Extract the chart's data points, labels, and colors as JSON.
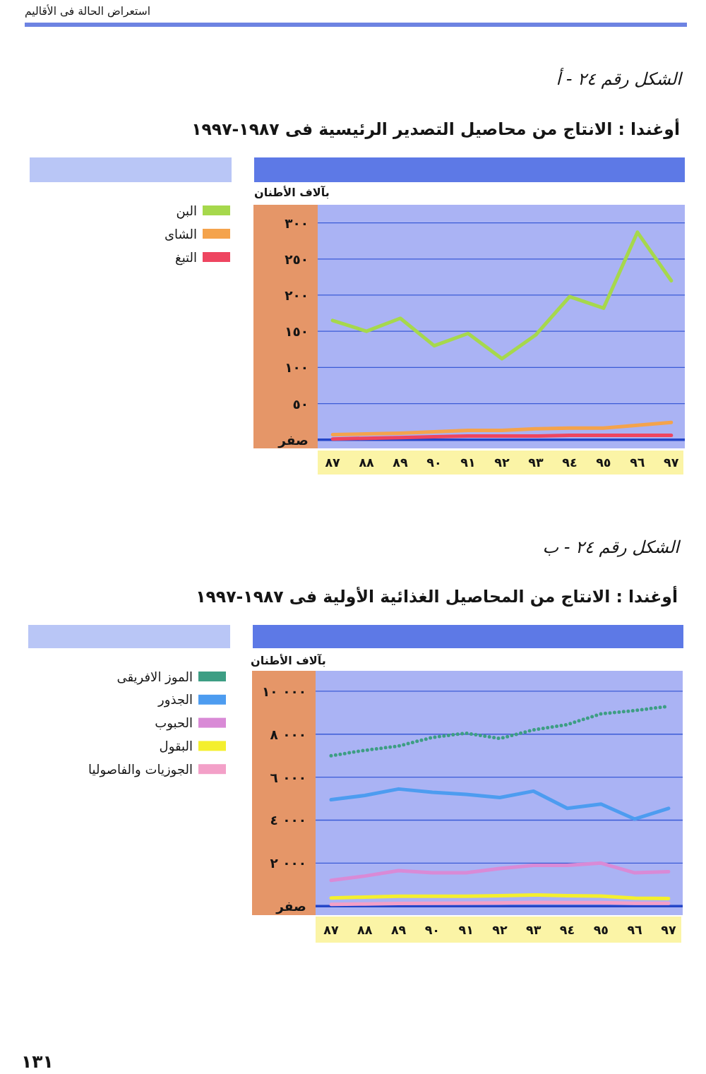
{
  "chart_data": [
    {
      "type": "line",
      "title": "أوغندا : الانتاج من محاصيل التصدير الرئيسية فى ١٩٨٧-١٩٩٧",
      "ylabel": "بآلاف الأطنان",
      "annotations": [
        "استعراض الحالة فى الأقاليم",
        "الشكل رقم ٢٤ - أ"
      ],
      "categories": [
        "٨٧",
        "٨٨",
        "٨٩",
        "٩٠",
        "٩١",
        "٩٢",
        "٩٣",
        "٩٤",
        "٩٥",
        "٩٦",
        "٩٧"
      ],
      "series": [
        {
          "name": "البن",
          "color": "#a6d84c",
          "values": [
            165,
            150,
            168,
            130,
            147,
            112,
            145,
            198,
            182,
            287,
            220
          ]
        },
        {
          "name": "الشاى",
          "color": "#f4a34c",
          "values": [
            7,
            8,
            9,
            11,
            13,
            13,
            15,
            16,
            16,
            20,
            24
          ]
        },
        {
          "name": "التبغ",
          "color": "#ee4560",
          "values": [
            1,
            2,
            3,
            4,
            5,
            5,
            5,
            6,
            6,
            6,
            6
          ]
        }
      ],
      "ylim": [
        -12,
        325
      ],
      "yticks": [
        {
          "value": 0,
          "label": "صفر"
        },
        {
          "value": 50,
          "label": "٥٠"
        },
        {
          "value": 100,
          "label": "١٠٠"
        },
        {
          "value": 150,
          "label": "١٥٠"
        },
        {
          "value": 200,
          "label": "٢٠٠"
        },
        {
          "value": 250,
          "label": "٢٥٠"
        },
        {
          "value": 300,
          "label": "٣٠٠"
        }
      ],
      "ref_lines": [
        {
          "axis": "y",
          "value": 0,
          "color": "#2446c8"
        }
      ],
      "grid": "y",
      "legend": "left"
    },
    {
      "type": "line",
      "title": "أوغندا : الانتاج من المحاصيل الغذائية الأولية فى ١٩٨٧-١٩٩٧",
      "ylabel": "بآلاف الأطنان",
      "annotations": [
        "الشكل رقم ٢٤ - ب",
        "١٣١"
      ],
      "categories": [
        "٨٧",
        "٨٨",
        "٨٩",
        "٩٠",
        "٩١",
        "٩٢",
        "٩٣",
        "٩٤",
        "٩٥",
        "٩٦",
        "٩٧"
      ],
      "series": [
        {
          "name": "الموز الافريقى",
          "color": "#3d9e84",
          "line_style": "dotted",
          "values": [
            7000,
            7250,
            7450,
            7850,
            8050,
            7800,
            8200,
            8450,
            8950,
            9100,
            9300
          ]
        },
        {
          "name": "الجذور",
          "color": "#4d9cf0",
          "values": [
            4950,
            5150,
            5450,
            5300,
            5200,
            5050,
            5350,
            4550,
            4750,
            4050,
            4550
          ]
        },
        {
          "name": "الحبوب",
          "color": "#d98ad6",
          "values": [
            1200,
            1400,
            1650,
            1550,
            1550,
            1750,
            1900,
            1900,
            2000,
            1550,
            1600
          ]
        },
        {
          "name": "البقول",
          "color": "#f4ef2e",
          "values": [
            380,
            420,
            460,
            460,
            460,
            480,
            520,
            480,
            470,
            370,
            350
          ]
        },
        {
          "name": "الجوزيات والفاصوليا",
          "color": "#f3a0c8",
          "values": [
            80,
            100,
            120,
            130,
            140,
            150,
            170,
            160,
            160,
            130,
            130
          ]
        }
      ],
      "ylim": [
        -420,
        10950
      ],
      "yticks": [
        {
          "value": 0,
          "label": "صفر"
        },
        {
          "value": 2000,
          "label": "٢ ٠٠٠"
        },
        {
          "value": 4000,
          "label": "٤ ٠٠٠"
        },
        {
          "value": 6000,
          "label": "٦ ٠٠٠"
        },
        {
          "value": 8000,
          "label": "٨ ٠٠٠"
        },
        {
          "value": 10000,
          "label": "١٠ ٠٠٠"
        }
      ],
      "ref_lines": [
        {
          "axis": "y",
          "value": 0,
          "color": "#2446c8"
        }
      ],
      "grid": "y",
      "legend": "left"
    }
  ]
}
